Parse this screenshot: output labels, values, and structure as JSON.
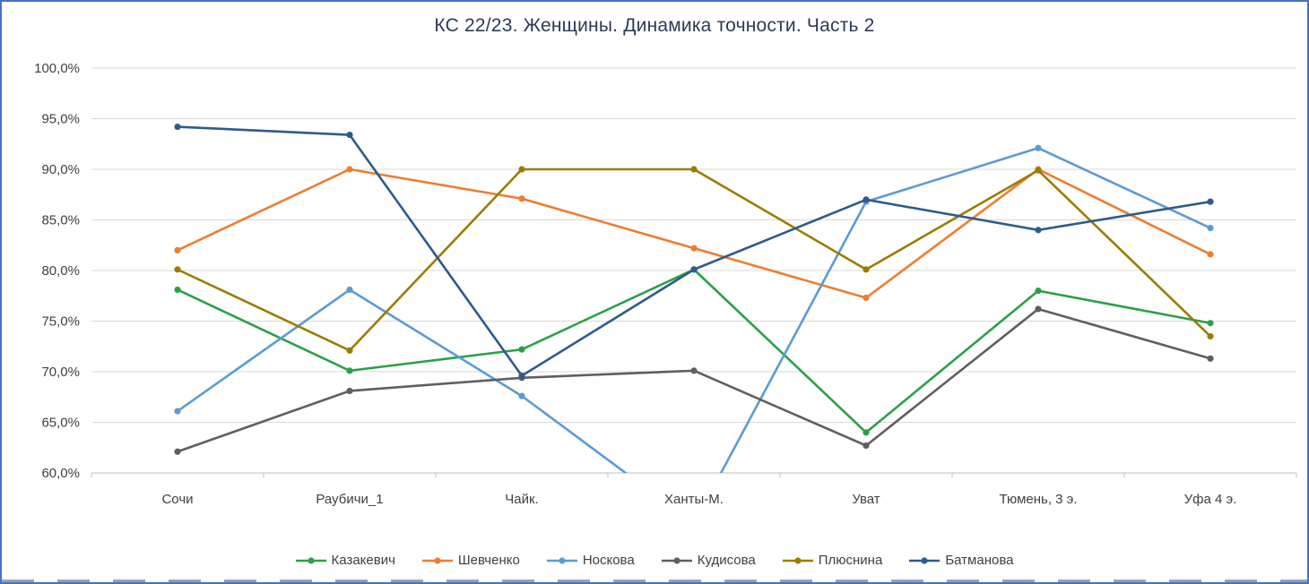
{
  "window": {
    "background": "#FFFFFF",
    "border_color": "#4472C4"
  },
  "chart_data": {
    "type": "line",
    "title": "КС 22/23. Женщины. Динамика точности. Часть 2",
    "categories": [
      "Сочи",
      "Раубичи_1",
      "Чайк.",
      "Ханты-М.",
      "Уват",
      "Тюмень, 3 э.",
      "Уфа 4 э."
    ],
    "series": [
      {
        "name": "Казакевич",
        "color": "#2CA048",
        "values": [
          78.1,
          70.1,
          72.2,
          80.1,
          64.0,
          78.0,
          74.8
        ]
      },
      {
        "name": "Шевченко",
        "color": "#ED7D31",
        "values": [
          82.0,
          90.0,
          87.1,
          82.2,
          77.3,
          90.0,
          81.6
        ]
      },
      {
        "name": "Носкова",
        "color": "#5B9BD5",
        "values": [
          66.1,
          78.1,
          67.6,
          55.0,
          86.8,
          92.1,
          84.2
        ]
      },
      {
        "name": "Кудисова",
        "color": "#5F5F5F",
        "values": [
          62.1,
          68.1,
          69.4,
          70.1,
          62.7,
          76.2,
          71.3
        ]
      },
      {
        "name": "Плюснина",
        "color": "#9A7D00",
        "values": [
          80.1,
          72.1,
          90.0,
          90.0,
          80.1,
          89.9,
          73.5
        ]
      },
      {
        "name": "Батманова",
        "color": "#2E5B8C",
        "values": [
          94.2,
          93.4,
          69.6,
          80.1,
          87.0,
          84.0,
          86.8
        ]
      }
    ],
    "ylim": [
      60,
      100
    ],
    "yticks": [
      {
        "value": 100,
        "label": "100,0%"
      },
      {
        "value": 95,
        "label": "95,0%"
      },
      {
        "value": 90,
        "label": "90,0%"
      },
      {
        "value": 85,
        "label": "85,0%"
      },
      {
        "value": 80,
        "label": "80,0%"
      },
      {
        "value": 75,
        "label": "75,0%"
      },
      {
        "value": 70,
        "label": "70,0%"
      },
      {
        "value": 65,
        "label": "65,0%"
      },
      {
        "value": 60,
        "label": "60,0%"
      }
    ],
    "grid": "horizontal",
    "legend_position": "bottom",
    "colors": {
      "gridline": "#D9D9D9",
      "axis_line": "#BFBFBF",
      "tick_text": "#404040",
      "title_text": "#2B3A55"
    }
  }
}
